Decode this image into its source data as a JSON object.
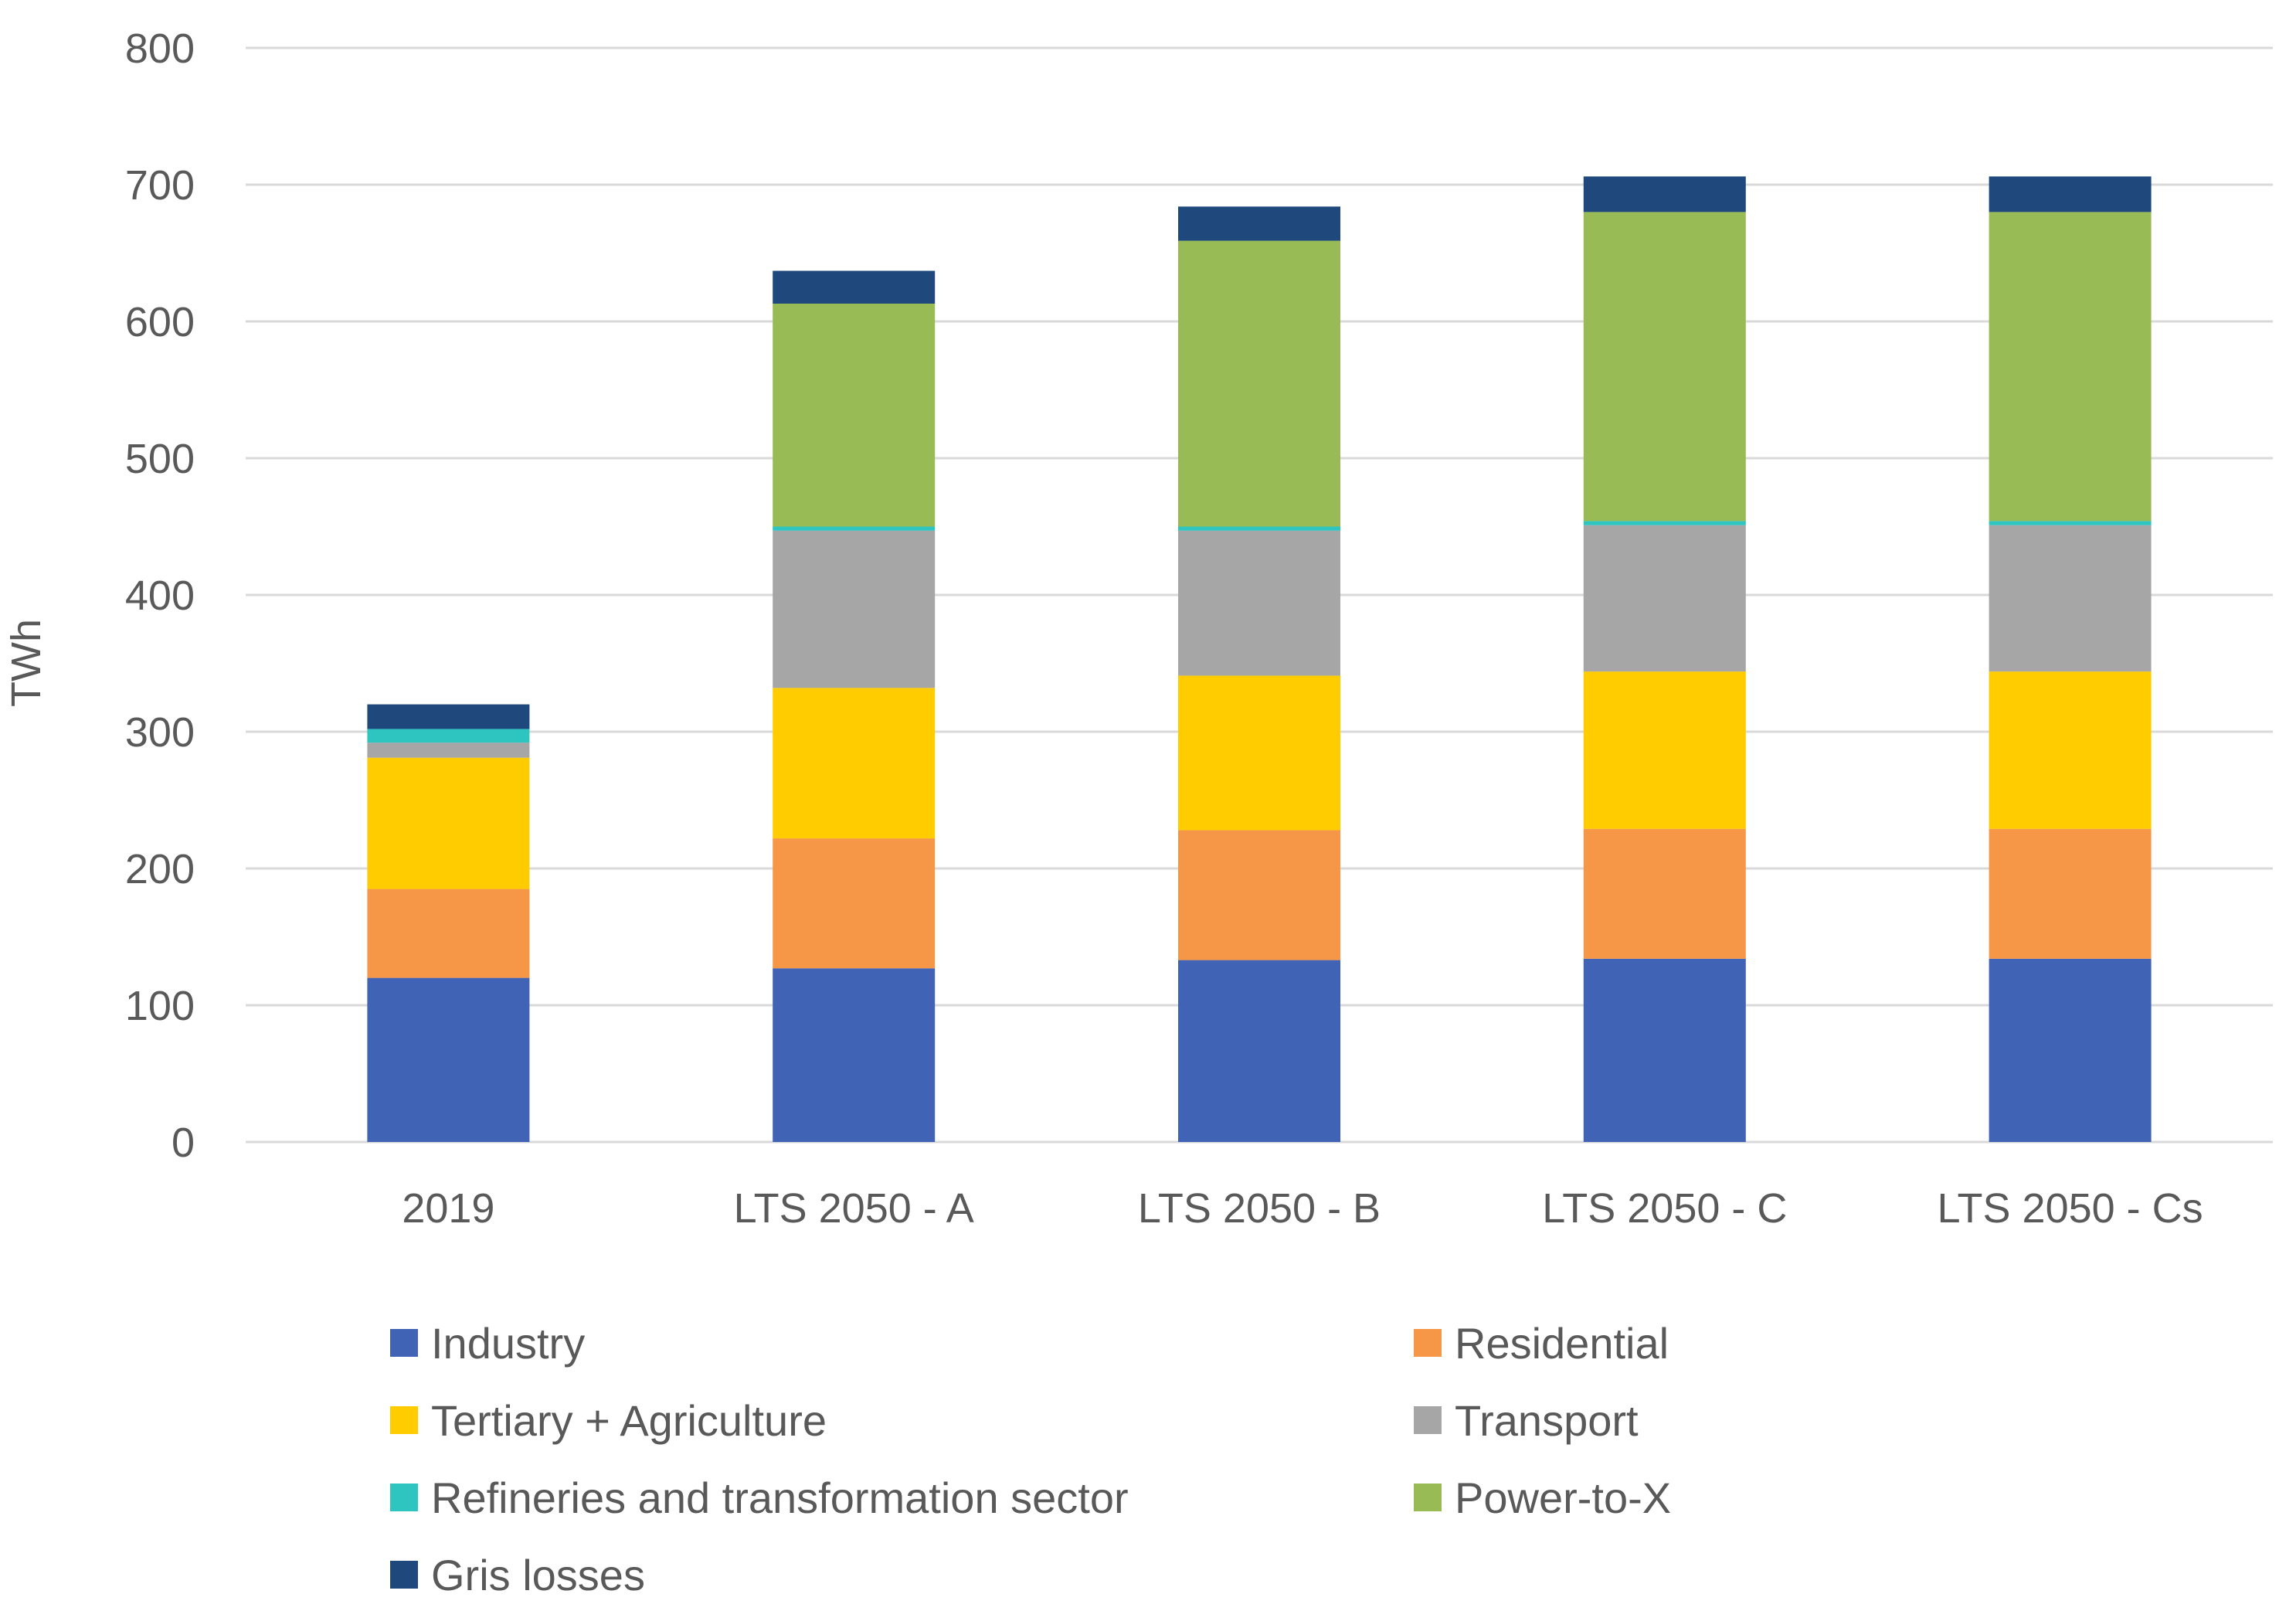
{
  "chart_data": {
    "type": "bar",
    "stacked": true,
    "title": "",
    "xlabel": "",
    "ylabel": "TWh",
    "ylim": [
      0,
      800
    ],
    "yticks": [
      0,
      100,
      200,
      300,
      400,
      500,
      600,
      700,
      800
    ],
    "grid": true,
    "legend_position": "bottom",
    "categories": [
      "2019",
      "LTS 2050 - A",
      "LTS 2050 - B",
      "LTS 2050 - C",
      "LTS 2050 - Cs"
    ],
    "series": [
      {
        "name": "Industry",
        "color": "#4063B6",
        "values": [
          120,
          127,
          133,
          134,
          134
        ]
      },
      {
        "name": "Residential",
        "color": "#F59747",
        "values": [
          65,
          95,
          95,
          95,
          95
        ]
      },
      {
        "name": "Tertiary + Agriculture",
        "color": "#FFCC00",
        "values": [
          96,
          110,
          113,
          115,
          115
        ]
      },
      {
        "name": "Transport",
        "color": "#A6A6A6",
        "values": [
          11,
          115,
          106,
          107,
          107
        ]
      },
      {
        "name": "Refineries and transformation sector",
        "color": "#2EC4C0",
        "values": [
          10,
          3,
          3,
          3,
          3
        ]
      },
      {
        "name": "Power-to-X",
        "color": "#99BB55",
        "values": [
          0,
          163,
          209,
          226,
          226
        ]
      },
      {
        "name": "Gris losses",
        "color": "#1F497D",
        "values": [
          18,
          24,
          25,
          26,
          26
        ]
      }
    ]
  }
}
